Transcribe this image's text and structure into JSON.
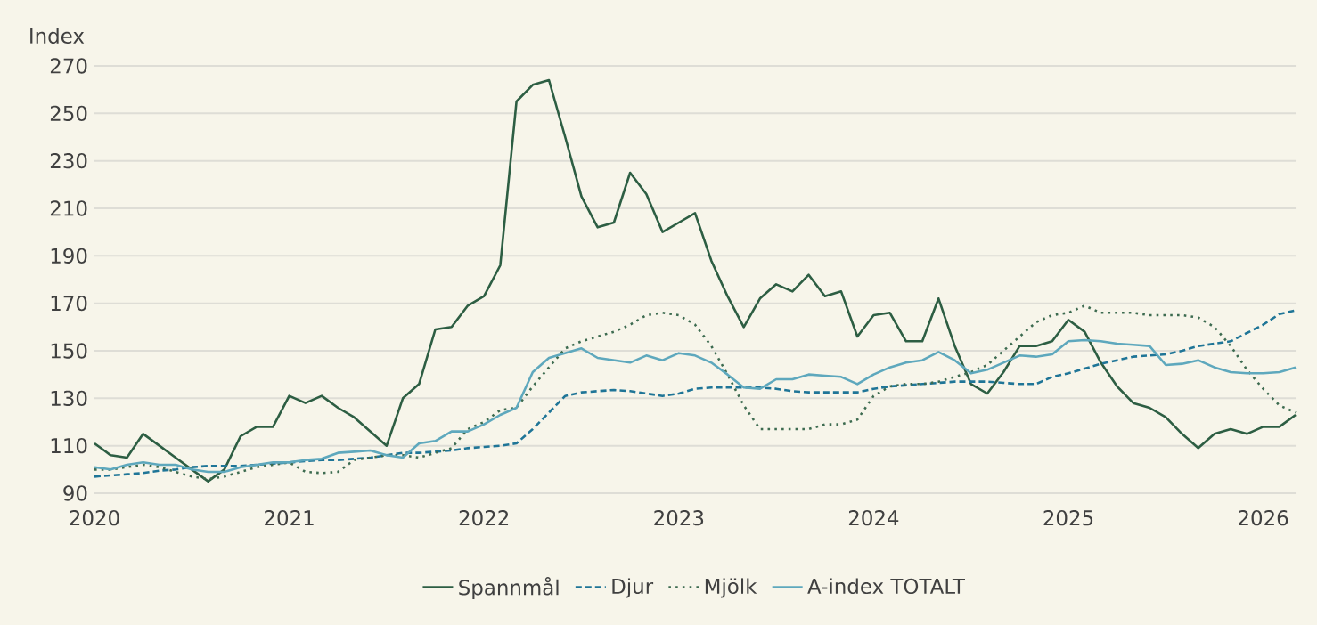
{
  "chart_data": {
    "type": "line",
    "ylabel": "Index",
    "x": [
      "2020-01",
      "2020-02",
      "2020-03",
      "2020-04",
      "2020-05",
      "2020-06",
      "2020-07",
      "2020-08",
      "2020-09",
      "2020-10",
      "2020-11",
      "2020-12",
      "2021-01",
      "2021-02",
      "2021-03",
      "2021-04",
      "2021-05",
      "2021-06",
      "2021-07",
      "2021-08",
      "2021-09",
      "2021-10",
      "2021-11",
      "2021-12",
      "2022-01",
      "2022-02",
      "2022-03",
      "2022-04",
      "2022-05",
      "2022-06",
      "2022-07",
      "2022-08",
      "2022-09",
      "2022-10",
      "2022-11",
      "2022-12",
      "2023-01",
      "2023-02",
      "2023-03",
      "2023-04",
      "2023-05",
      "2023-06",
      "2023-07",
      "2023-08",
      "2023-09",
      "2023-10",
      "2023-11",
      "2023-12",
      "2024-01",
      "2024-02",
      "2024-03",
      "2024-04",
      "2024-05",
      "2024-06",
      "2024-07",
      "2024-08",
      "2024-09",
      "2024-10",
      "2024-11",
      "2024-12",
      "2025-01",
      "2025-02",
      "2025-03",
      "2025-04",
      "2025-05",
      "2025-06",
      "2025-07",
      "2025-08",
      "2025-09",
      "2025-10",
      "2025-11",
      "2025-12",
      "2026-01",
      "2026-02",
      "2026-03"
    ],
    "series": [
      {
        "name": "Spannmål",
        "color": "#2d5e43",
        "line_style": "solid",
        "values": [
          111,
          106,
          105,
          115,
          110,
          105,
          100,
          95,
          100,
          114,
          118,
          118,
          131,
          128,
          131,
          126,
          122,
          116,
          110,
          130,
          136,
          159,
          160,
          169,
          173,
          186,
          255,
          262,
          264,
          240,
          215,
          202,
          204,
          225,
          216,
          200,
          204,
          208,
          188,
          173,
          160,
          172,
          178,
          175,
          182,
          173,
          175,
          156,
          165,
          166,
          154,
          154,
          172,
          152,
          136,
          132,
          141,
          152,
          152,
          154,
          163,
          158,
          145,
          135,
          128,
          126,
          122,
          115,
          109,
          115,
          117,
          115,
          118,
          118,
          123
        ]
      },
      {
        "name": "Djur",
        "color": "#1f7597",
        "line_style": "dashed",
        "values": [
          97,
          97.5,
          98,
          98.5,
          99.5,
          100,
          101,
          101.5,
          101.5,
          101.5,
          102,
          102.5,
          103,
          103.5,
          104,
          104,
          104.5,
          105,
          106,
          107,
          107,
          107.5,
          108,
          109,
          109.5,
          110,
          111,
          117,
          124,
          131,
          132.5,
          133,
          133.5,
          133,
          132,
          131,
          132,
          134,
          134.5,
          134.5,
          134.5,
          134.5,
          134,
          133,
          132.5,
          132.5,
          132.5,
          132.5,
          134,
          135,
          135.5,
          136,
          136.5,
          137,
          137,
          137,
          136.5,
          136,
          136,
          139,
          140.5,
          142.5,
          144.5,
          146,
          147.5,
          148,
          148.5,
          150,
          152,
          153,
          154,
          157.5,
          161,
          165.5,
          167
        ]
      },
      {
        "name": "Mjölk",
        "color": "#3d6b50",
        "line_style": "dotted",
        "values": [
          100,
          100,
          101,
          102,
          101,
          99,
          97,
          96,
          97,
          99,
          101,
          102,
          103,
          99,
          98.5,
          99,
          104,
          105,
          106,
          106,
          105,
          107,
          109,
          117,
          120,
          125,
          126,
          135,
          143,
          151,
          154,
          156,
          158,
          161,
          165,
          166,
          165,
          161,
          152,
          140,
          127,
          117,
          117,
          117,
          117,
          119,
          119,
          121,
          131,
          135,
          136,
          136,
          137,
          139,
          141,
          144,
          150,
          156,
          162,
          165,
          166,
          169,
          166,
          166,
          166,
          165,
          165,
          165,
          164,
          160,
          152,
          142,
          134,
          127,
          124
        ]
      },
      {
        "name": "A-index TOTALT",
        "color": "#5ea8bd",
        "line_style": "solid",
        "values": [
          101,
          100,
          102,
          103,
          102,
          102,
          100,
          99,
          99,
          101,
          102,
          103,
          103,
          104,
          104.5,
          107,
          107.5,
          108,
          106,
          105,
          111,
          112,
          116,
          116,
          119,
          123,
          126,
          141,
          147,
          149,
          151,
          147,
          146,
          145,
          148,
          146,
          149,
          148,
          145,
          140,
          134.5,
          134,
          138,
          138,
          140,
          139.5,
          139,
          136,
          140,
          143,
          145,
          146,
          149.5,
          146,
          140.5,
          142,
          145,
          148,
          147.5,
          148.5,
          154,
          154.5,
          154,
          153,
          152.5,
          152,
          144,
          144.5,
          146,
          143,
          141,
          140.5,
          140.5,
          141,
          143
        ]
      }
    ],
    "xlim": [
      "2020-01",
      "2026-03"
    ],
    "xticks": [
      "2020",
      "2021",
      "2022",
      "2023",
      "2024",
      "2025",
      "2026"
    ],
    "ylim": [
      90,
      270
    ],
    "yticks": [
      90,
      110,
      130,
      150,
      170,
      190,
      210,
      230,
      250,
      270
    ],
    "grid": "y",
    "legend": "bottom"
  }
}
